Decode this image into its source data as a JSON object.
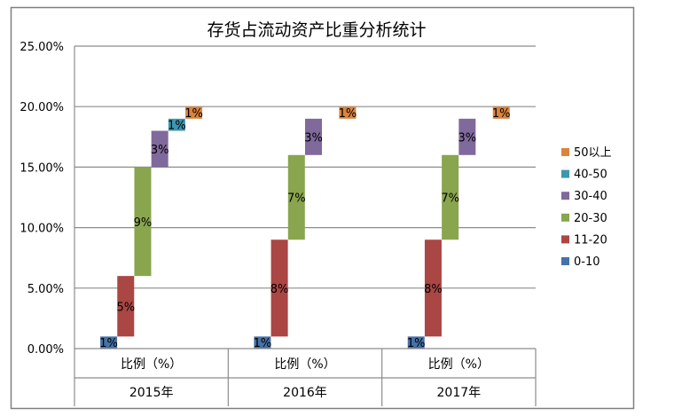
{
  "chart_data": {
    "type": "bar",
    "subtype": "floating-stacked",
    "title": "存货占流动资产比重分析统计",
    "ylim": [
      0,
      25
    ],
    "y_ticks": [
      "25.00%",
      "20.00%",
      "15.00%",
      "10.00%",
      "5.00%",
      "0.00%"
    ],
    "y_tick_values": [
      25,
      20,
      15,
      10,
      5,
      0
    ],
    "groups": [
      {
        "year": "2015年",
        "sub_label": "比例（%）"
      },
      {
        "year": "2016年",
        "sub_label": "比例（%）"
      },
      {
        "year": "2017年",
        "sub_label": "比例（%）"
      }
    ],
    "series": [
      {
        "name": "0-10",
        "color": "#4572A7",
        "values": [
          1,
          1,
          1
        ],
        "labels": [
          "1%",
          "1%",
          "1%"
        ],
        "base": [
          0,
          0,
          0
        ],
        "top": [
          1,
          1,
          1
        ]
      },
      {
        "name": "11-20",
        "color": "#AA4643",
        "values": [
          5,
          8,
          8
        ],
        "labels": [
          "5%",
          "8%",
          "8%"
        ],
        "base": [
          1,
          1,
          1
        ],
        "top": [
          6,
          9,
          9
        ]
      },
      {
        "name": "20-30",
        "color": "#89A54E",
        "values": [
          9,
          7,
          7
        ],
        "labels": [
          "9%",
          "7%",
          "7%"
        ],
        "base": [
          6,
          9,
          9
        ],
        "top": [
          15,
          16,
          16
        ]
      },
      {
        "name": "30-40",
        "color": "#80699B",
        "values": [
          3,
          3,
          3
        ],
        "labels": [
          "3%",
          "3%",
          "3%"
        ],
        "base": [
          15,
          16,
          16
        ],
        "top": [
          18,
          19,
          19
        ]
      },
      {
        "name": "40-50",
        "color": "#3D96AE",
        "values": [
          1,
          null,
          null
        ],
        "labels": [
          "1%",
          null,
          null
        ],
        "base": [
          18,
          null,
          null
        ],
        "top": [
          19,
          null,
          null
        ]
      },
      {
        "name": "50以上",
        "color": "#DB843D",
        "values": [
          1,
          1,
          1
        ],
        "labels": [
          "1%",
          "1%",
          "1%"
        ],
        "base": [
          19,
          19,
          19
        ],
        "top": [
          20,
          20,
          20
        ]
      }
    ],
    "legend_order": [
      "50以上",
      "40-50",
      "30-40",
      "20-30",
      "11-20",
      "0-10"
    ],
    "legend_position": "right",
    "grid": true
  }
}
